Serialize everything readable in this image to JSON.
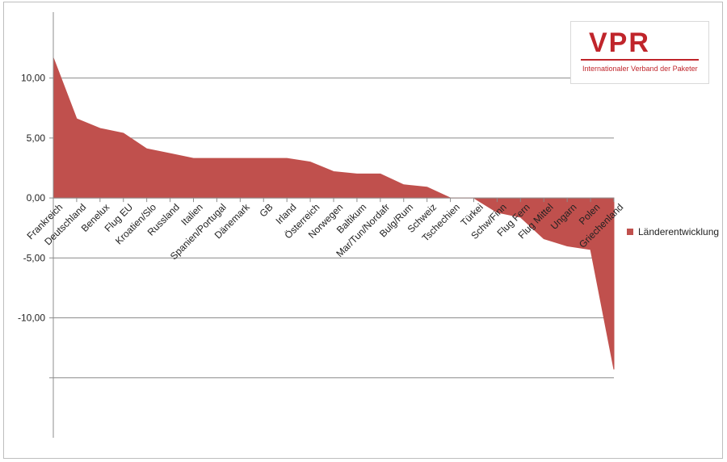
{
  "chart_data": {
    "type": "area",
    "categories": [
      "Frankreich",
      "Deutschland",
      "Benelux",
      "Flug EU",
      "Kroatien/Slo",
      "Russland",
      "Italien",
      "Spanien/Portugal",
      "Dänemark",
      "GB",
      "Irland",
      "Österreich",
      "Norwegen",
      "Baltikum",
      "Mar/Tun/Nordafr",
      "Bulg/Rum",
      "Schweiz",
      "Tschechien",
      "Türkei",
      "Schw/Finn",
      "Flug Fern",
      "Flug Mittel",
      "Ungarn",
      "Polen",
      "Griechenland"
    ],
    "series": [
      {
        "name": "Länderentwicklung",
        "values": [
          11.7,
          6.6,
          5.8,
          5.4,
          4.1,
          3.7,
          3.3,
          3.3,
          3.3,
          3.3,
          3.3,
          3.0,
          2.2,
          2.0,
          2.0,
          1.1,
          0.9,
          0.0,
          0.0,
          -1.2,
          -1.6,
          -3.4,
          -4.0,
          -4.3,
          -14.3
        ],
        "color": "#c0504d"
      }
    ],
    "yticks": [
      10,
      5,
      0,
      -5,
      -10,
      -15
    ],
    "ytick_labels": [
      "10,00",
      "5,00",
      "0,00",
      "-5,00",
      "-10,00",
      ""
    ],
    "ylim": [
      -20,
      15.5
    ],
    "grid": true,
    "legend_position": "right",
    "title": "",
    "xlabel": "",
    "ylabel": ""
  },
  "logo": {
    "mark": "VPR",
    "tagline": "Internationaler Verband der Paketer",
    "color": "#c0252b"
  }
}
